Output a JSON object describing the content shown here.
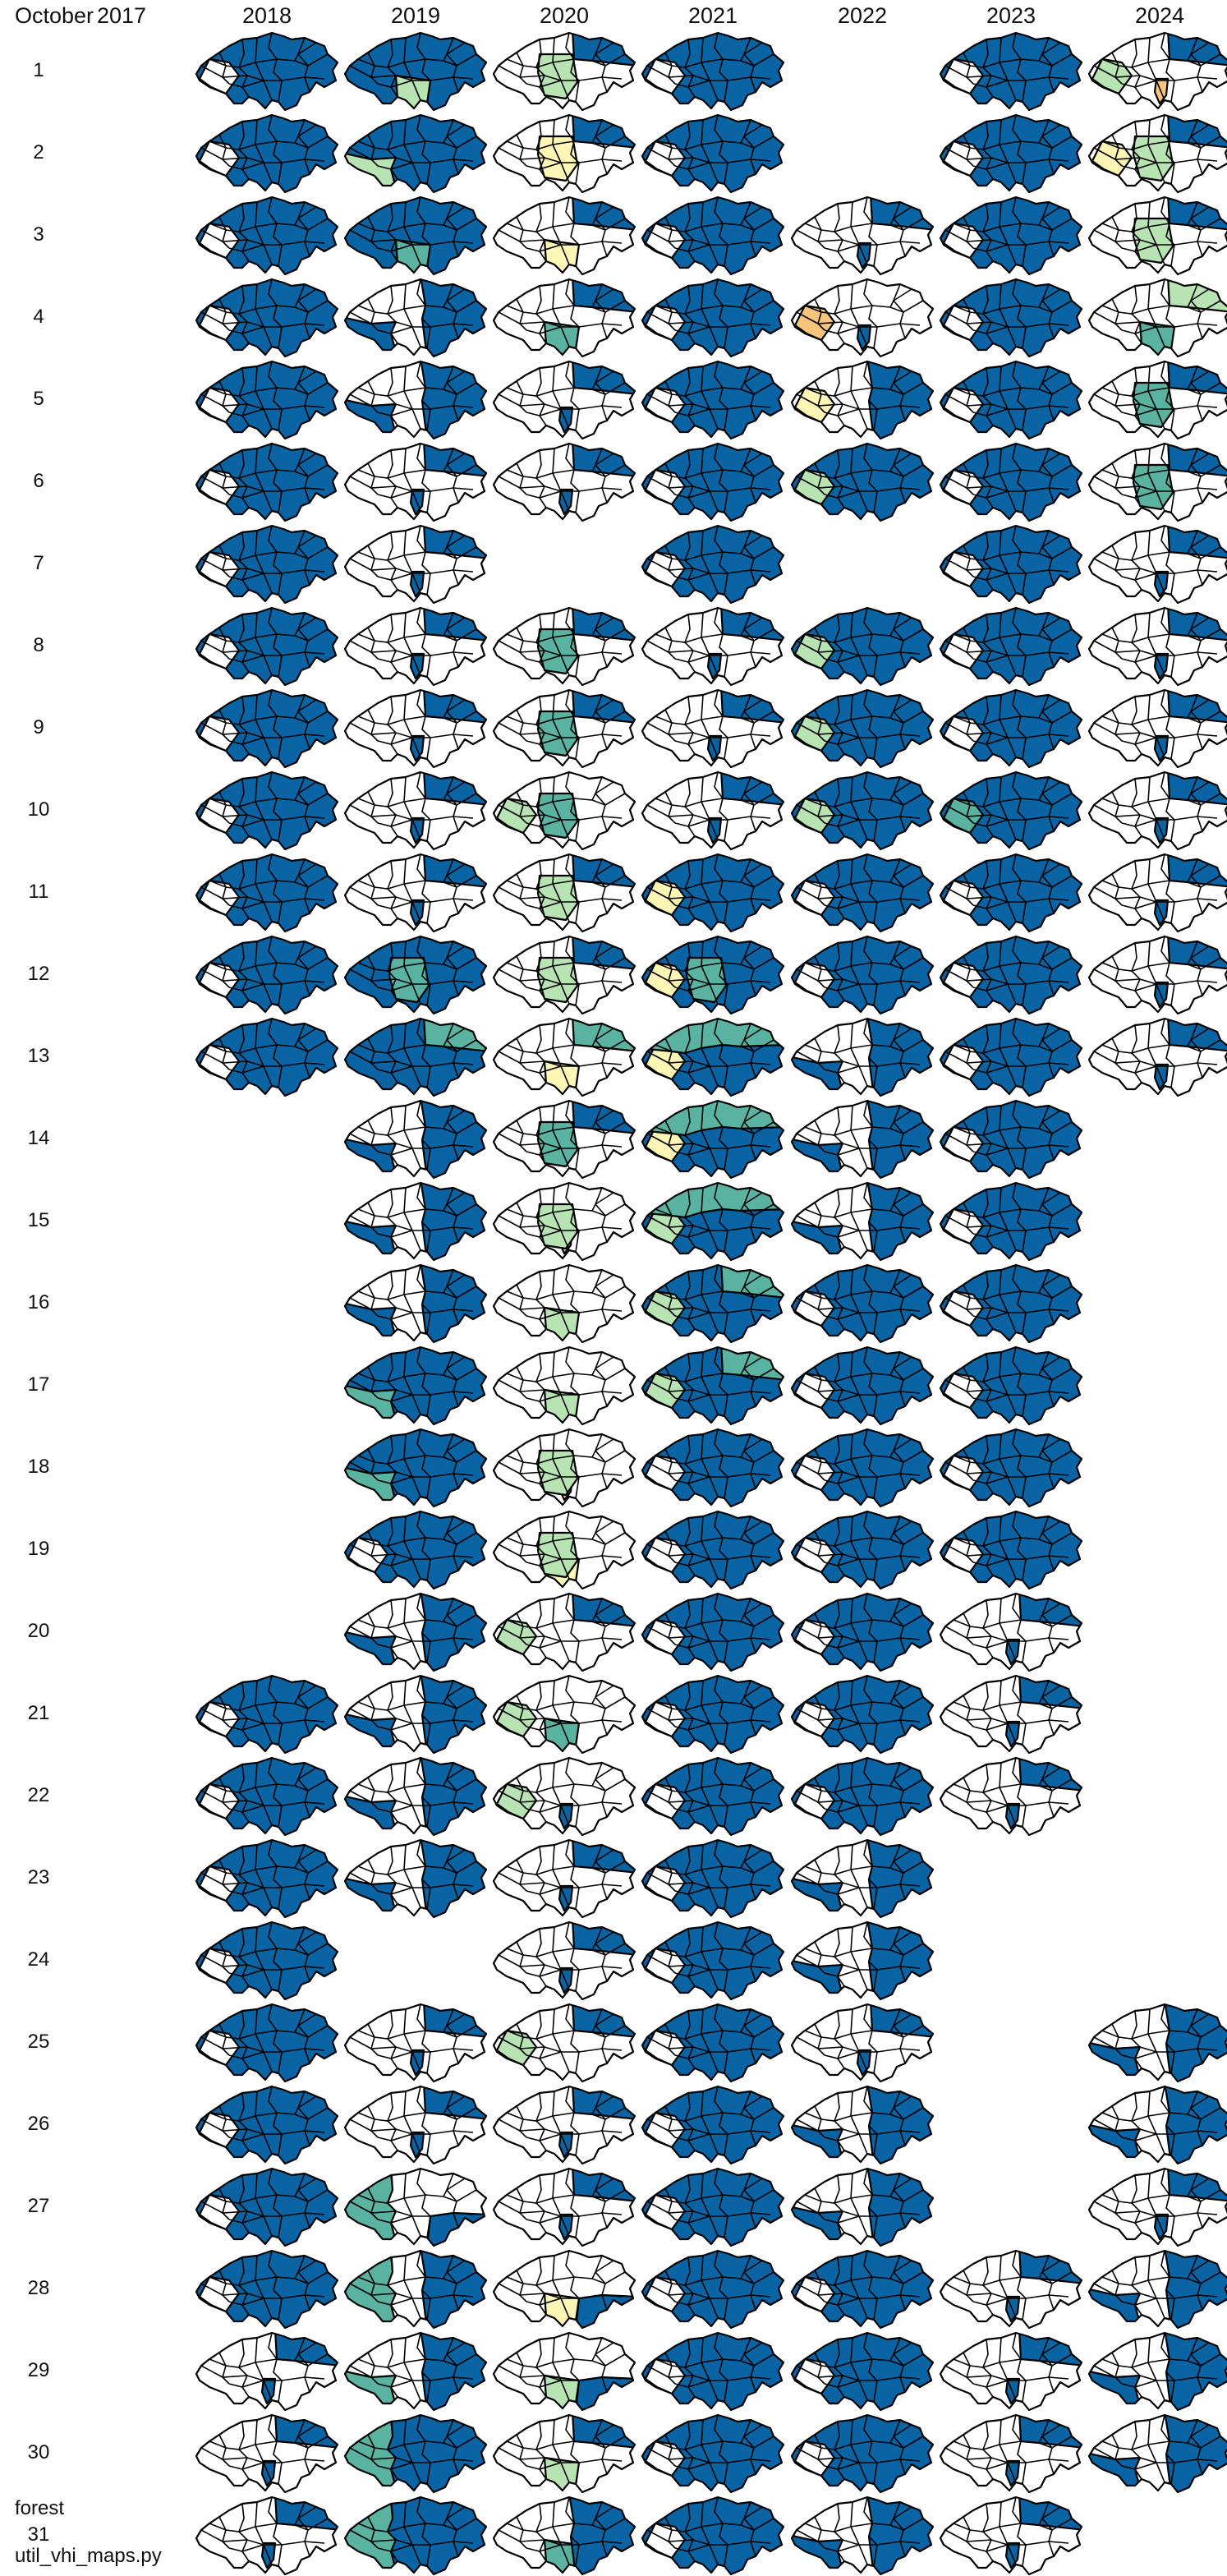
{
  "header": {
    "month_label": "October",
    "first_year": "2017"
  },
  "years": [
    "2017",
    "2018",
    "2019",
    "2020",
    "2021",
    "2022",
    "2023",
    "2024"
  ],
  "days": [
    "1",
    "2",
    "3",
    "4",
    "5",
    "6",
    "7",
    "8",
    "9",
    "10",
    "11",
    "12",
    "13",
    "14",
    "15",
    "16",
    "17",
    "18",
    "19",
    "20",
    "21",
    "22",
    "23",
    "24",
    "25",
    "26",
    "27",
    "28",
    "29",
    "30",
    "31"
  ],
  "footer": {
    "category_label": "forest",
    "script_label": "util_vhi_maps.py"
  },
  "colors": {
    "high": "#0a64a4",
    "mid": "#59b3a0",
    "lowmid": "#b8e3b2",
    "low": "#fdf6b4",
    "dry": "#f6c47a",
    "none": "#ffffff"
  },
  "cells": {
    "2018": {
      "1": "H",
      "2": "H",
      "3": "H",
      "4": "H",
      "5": "H",
      "6": "H",
      "7": "H",
      "8": "H",
      "9": "H",
      "10": "H",
      "11": "H",
      "12": "H",
      "13": "H",
      "21": "H",
      "22": "H",
      "23": "H",
      "24": "H",
      "25": "H",
      "26": "H",
      "27": "H",
      "28": "H",
      "29": "W",
      "30": "W",
      "31": "W"
    },
    "2019": {
      "1": "H",
      "2": "H",
      "3": "H",
      "4": "B",
      "5": "B",
      "6": "W",
      "7": "W",
      "8": "W",
      "9": "W",
      "10": "W",
      "11": "W",
      "12": "B",
      "13": "B",
      "14": "B",
      "15": "B",
      "16": "B",
      "17": "H",
      "18": "H",
      "19": "H",
      "20": "B",
      "21": "B",
      "22": "B",
      "23": "B",
      "25": "W",
      "26": "W",
      "27": "B",
      "28": "B",
      "29": "B",
      "30": "B",
      "31": "B"
    },
    "2020": {
      "1": "W",
      "2": "W",
      "3": "W",
      "4": "W",
      "5": "W",
      "6": "W",
      "8": "W",
      "9": "W",
      "10": "W",
      "11": "W",
      "12": "W",
      "13": "W",
      "14": "W",
      "15": "W",
      "16": "W",
      "17": "W",
      "18": "W",
      "19": "W",
      "20": "W",
      "21": "W",
      "22": "W",
      "23": "W",
      "24": "W",
      "25": "W",
      "26": "W",
      "27": "W",
      "28": "W",
      "29": "W",
      "30": "W",
      "31": "W"
    },
    "2021": {
      "1": "H",
      "2": "H",
      "3": "H",
      "4": "H",
      "5": "H",
      "6": "H",
      "7": "H",
      "8": "W",
      "9": "W",
      "10": "W",
      "11": "B",
      "12": "B",
      "13": "B",
      "14": "B",
      "15": "B",
      "16": "B",
      "17": "B",
      "18": "H",
      "19": "H",
      "20": "H",
      "21": "H",
      "22": "H",
      "23": "H",
      "24": "H",
      "25": "H",
      "26": "H",
      "27": "H",
      "28": "H",
      "29": "H",
      "30": "H",
      "31": "H"
    },
    "2022": {
      "3": "W",
      "4": "W",
      "5": "W",
      "6": "H",
      "8": "H",
      "9": "H",
      "10": "H",
      "11": "H",
      "12": "H",
      "13": "B",
      "14": "B",
      "15": "B",
      "16": "H",
      "17": "H",
      "18": "H",
      "19": "H",
      "20": "H",
      "21": "H",
      "22": "H",
      "23": "B",
      "24": "B",
      "25": "W",
      "26": "B",
      "27": "B",
      "28": "H",
      "29": "H",
      "30": "H",
      "31": "B"
    },
    "2023": {
      "1": "H",
      "2": "H",
      "3": "H",
      "4": "H",
      "5": "H",
      "6": "H",
      "7": "H",
      "8": "H",
      "9": "H",
      "10": "H",
      "11": "H",
      "12": "H",
      "13": "H",
      "14": "H",
      "15": "H",
      "16": "H",
      "17": "H",
      "18": "H",
      "19": "H",
      "20": "W",
      "21": "W",
      "22": "W",
      "28": "W",
      "29": "W",
      "30": "W",
      "31": "W"
    },
    "2024": {
      "1": "W",
      "2": "W",
      "3": "W",
      "4": "W",
      "5": "W",
      "6": "W",
      "7": "W",
      "8": "W",
      "9": "W",
      "10": "W",
      "11": "W",
      "12": "W",
      "13": "W",
      "25": "B",
      "26": "B",
      "27": "W",
      "28": "B",
      "29": "B",
      "30": "B"
    }
  }
}
